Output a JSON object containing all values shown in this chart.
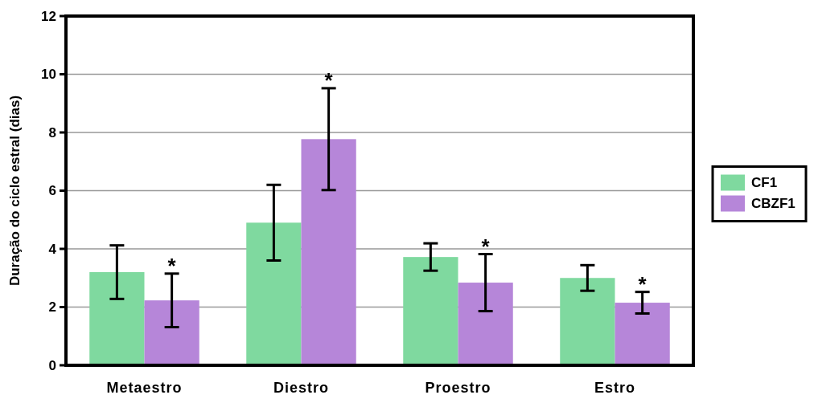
{
  "chart_data": {
    "type": "bar",
    "ylabel": "Duração do ciclo estral (dias)",
    "categories": [
      "Metaestro",
      "Diestro",
      "Proestro",
      "Estro"
    ],
    "series": [
      {
        "name": "CF1",
        "color": "#7fd99f",
        "values": [
          3.2,
          4.9,
          3.72,
          3.0
        ],
        "errors": [
          0.92,
          1.3,
          0.47,
          0.44
        ]
      },
      {
        "name": "CBZF1",
        "color": "#b686d9",
        "values": [
          2.23,
          7.77,
          2.84,
          2.15
        ],
        "errors": [
          0.92,
          1.75,
          0.98,
          0.37
        ]
      }
    ],
    "ylim": [
      0,
      12
    ],
    "yticks": [
      0,
      2,
      4,
      6,
      8,
      10,
      12
    ],
    "grid": "y",
    "legend": "right",
    "annotations": [
      "*",
      "*",
      "*",
      "*"
    ]
  }
}
